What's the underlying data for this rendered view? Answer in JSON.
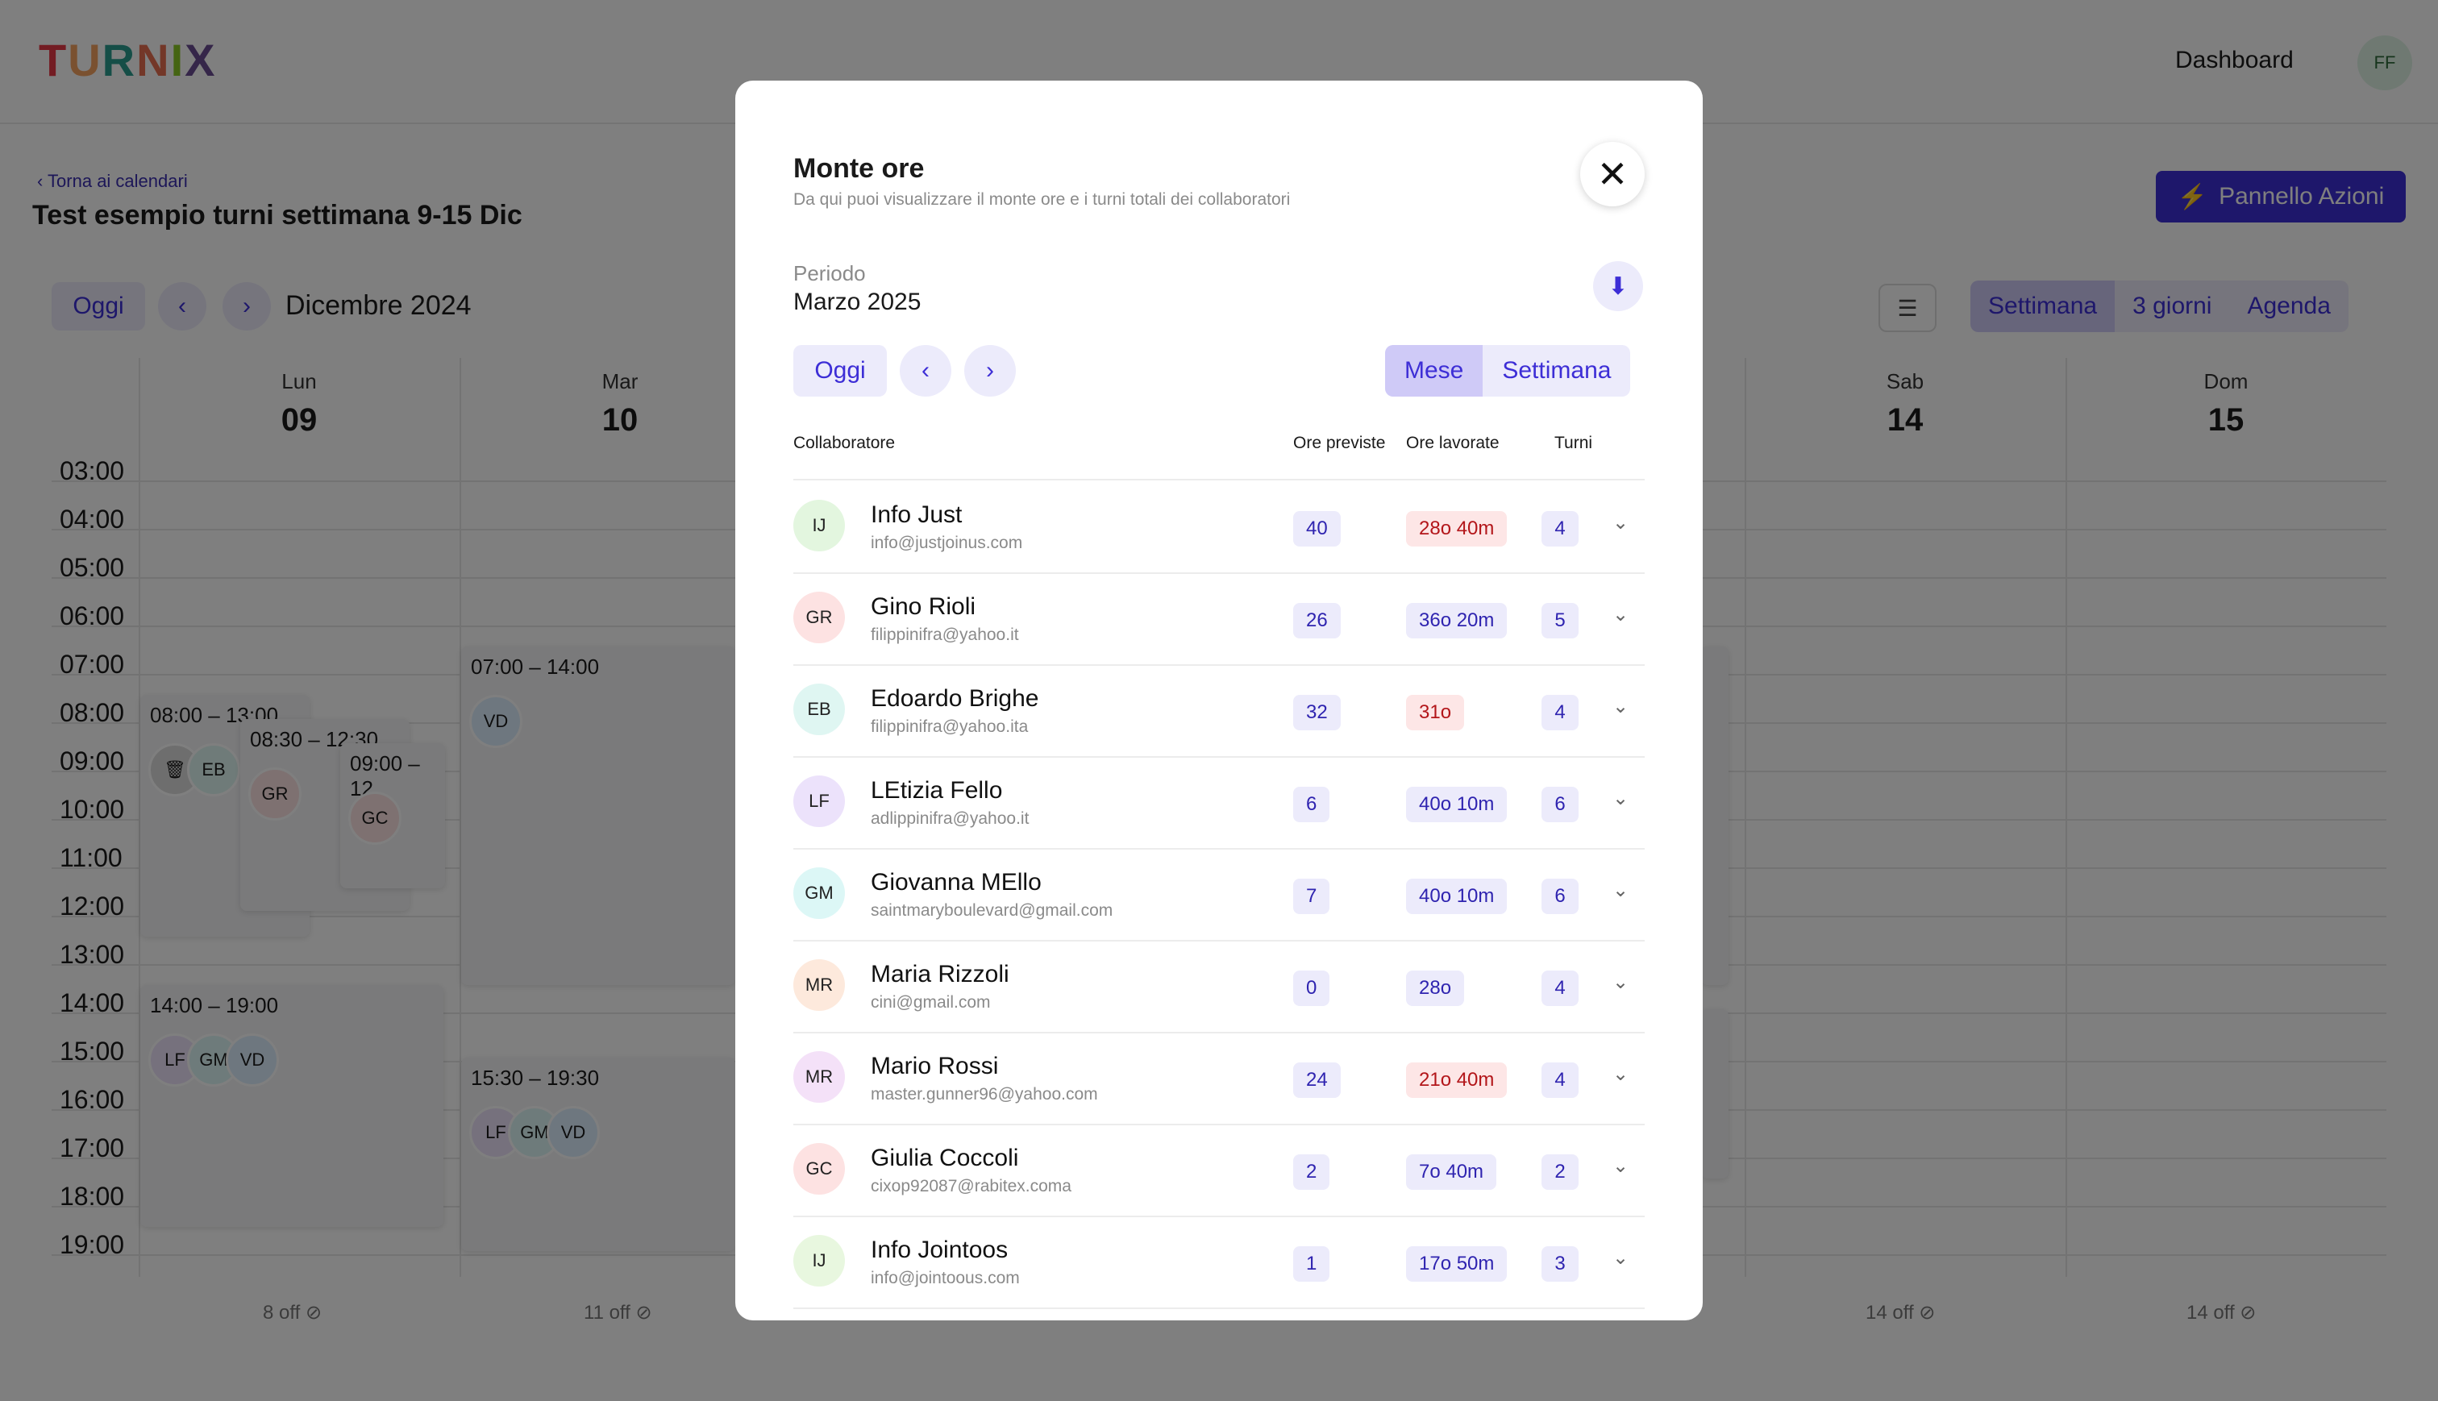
{
  "app": {
    "logo": "TURNIX",
    "logo_colors": [
      "#e63946",
      "#f4a261",
      "#2a9d8f",
      "#e76f51",
      "#8ac926",
      "#6a4c93"
    ],
    "nav_dashboard": "Dashboard",
    "user_initials": "FF"
  },
  "calendar": {
    "back_link": "Torna ai calendari",
    "title": "Test esempio turni settimana 9-15 Dic",
    "action_button": "Pannello Azioni",
    "today_button": "Oggi",
    "month": "Dicembre 2024",
    "views": [
      "Settimana",
      "3 giorni",
      "Agenda"
    ],
    "active_view": "Settimana",
    "days": [
      {
        "name": "Lun",
        "num": "09",
        "off": "8 off"
      },
      {
        "name": "Mar",
        "num": "10",
        "off": "11 off"
      },
      {
        "name": "",
        "num": "",
        "off": ""
      },
      {
        "name": "",
        "num": "",
        "off": ""
      },
      {
        "name": "",
        "num": "",
        "off": ""
      },
      {
        "name": "Sab",
        "num": "14",
        "off": "14 off"
      },
      {
        "name": "Dom",
        "num": "15",
        "off": "14 off"
      }
    ],
    "hours": [
      "03:00",
      "04:00",
      "05:00",
      "06:00",
      "07:00",
      "08:00",
      "09:00",
      "10:00",
      "11:00",
      "12:00",
      "13:00",
      "14:00",
      "15:00",
      "16:00",
      "17:00",
      "18:00",
      "19:00"
    ],
    "events": [
      {
        "time": "08:00 – 13:00",
        "avatars": [
          "EB"
        ]
      },
      {
        "time": "08:30 – 12:30",
        "avatars": [
          "GR"
        ]
      },
      {
        "time": "09:00 – 12",
        "avatars": [
          "GC"
        ]
      },
      {
        "time": "14:00 – 19:00",
        "avatars": [
          "LF",
          "GM",
          "VD"
        ]
      },
      {
        "time": "07:00 – 14:00",
        "avatars": [
          "VD"
        ]
      },
      {
        "time": "15:30 – 19:30",
        "avatars": [
          "LF",
          "GM",
          "VD"
        ]
      }
    ]
  },
  "modal": {
    "title": "Monte ore",
    "subtitle": "Da qui puoi visualizzare il monte ore e i turni totali dei collaboratori",
    "period_label": "Periodo",
    "period_value": "Marzo 2025",
    "today_button": "Oggi",
    "segment": [
      "Mese",
      "Settimana"
    ],
    "active_segment": "Mese",
    "columns": {
      "collaborator": "Collaboratore",
      "planned": "Ore previste",
      "worked": "Ore lavorate",
      "shifts": "Turni"
    },
    "rows": [
      {
        "initials": "IJ",
        "name": "Info Just",
        "email": "info@justjoinus.com",
        "planned": "40",
        "worked": "28o 40m",
        "worked_status": "under",
        "shifts": "4",
        "avatar_color": "#e3f6df"
      },
      {
        "initials": "GR",
        "name": "Gino Rioli",
        "email": "filippinifra@yahoo.it",
        "planned": "26",
        "worked": "36o 20m",
        "worked_status": "ok",
        "shifts": "5",
        "avatar_color": "#fde2e2"
      },
      {
        "initials": "EB",
        "name": "Edoardo Brighe",
        "email": "filippinifra@yahoo.ita",
        "planned": "32",
        "worked": "31o",
        "worked_status": "under",
        "shifts": "4",
        "avatar_color": "#dff6f2"
      },
      {
        "initials": "LF",
        "name": "LEtizia Fello",
        "email": "adlippinifra@yahoo.it",
        "planned": "6",
        "worked": "40o 10m",
        "worked_status": "ok",
        "shifts": "6",
        "avatar_color": "#ece2fb"
      },
      {
        "initials": "GM",
        "name": "Giovanna MEllo",
        "email": "saintmaryboulevard@gmail.com",
        "planned": "7",
        "worked": "40o 10m",
        "worked_status": "ok",
        "shifts": "6",
        "avatar_color": "#dcf7f6"
      },
      {
        "initials": "MR",
        "name": "Maria Rizzoli",
        "email": "cini@gmail.com",
        "planned": "0",
        "worked": "28o",
        "worked_status": "ok",
        "shifts": "4",
        "avatar_color": "#fde9dc"
      },
      {
        "initials": "MR",
        "name": "Mario Rossi",
        "email": "master.gunner96@yahoo.com",
        "planned": "24",
        "worked": "21o 40m",
        "worked_status": "under",
        "shifts": "4",
        "avatar_color": "#f4e1f8"
      },
      {
        "initials": "GC",
        "name": "Giulia Coccoli",
        "email": "cixop92087@rabitex.coma",
        "planned": "2",
        "worked": "7o 40m",
        "worked_status": "ok",
        "shifts": "2",
        "avatar_color": "#fde2e2"
      },
      {
        "initials": "IJ",
        "name": "Info Jointoos",
        "email": "info@jointoous.com",
        "planned": "1",
        "worked": "17o 50m",
        "worked_status": "ok",
        "shifts": "3",
        "avatar_color": "#e8f7df"
      }
    ]
  }
}
